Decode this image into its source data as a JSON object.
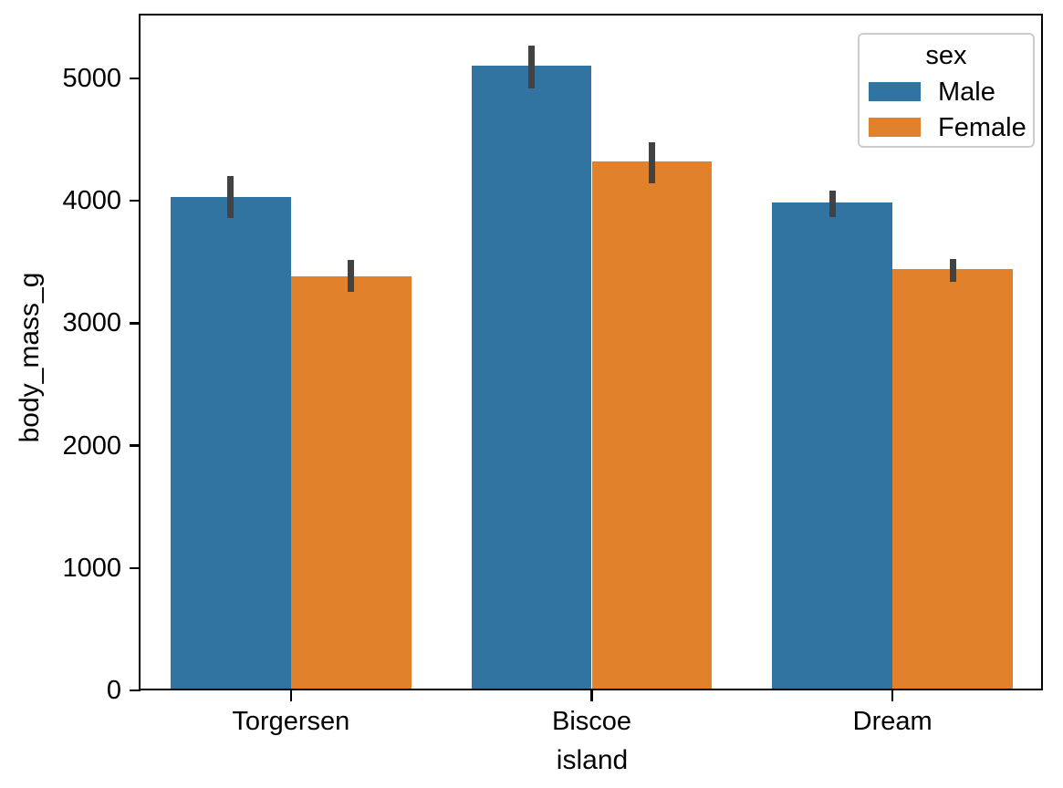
{
  "chart_data": {
    "type": "bar",
    "title": "",
    "xlabel": "island",
    "ylabel": "body_mass_g",
    "categories": [
      "Torgersen",
      "Biscoe",
      "Dream"
    ],
    "series": [
      {
        "name": "Male",
        "color": "#3274a1",
        "values": [
          4034.8,
          5104.5,
          3987.1
        ],
        "ci_low": [
          3860,
          4915,
          3865
        ],
        "ci_high": [
          4200,
          5265,
          4080
        ]
      },
      {
        "name": "Female",
        "color": "#e1812c",
        "values": [
          3386.6,
          4319.4,
          3446.3
        ],
        "ci_low": [
          3260,
          4140,
          3335
        ],
        "ci_high": [
          3515,
          4475,
          3525
        ]
      }
    ],
    "y_ticks": [
      "0",
      "1000",
      "2000",
      "3000",
      "4000",
      "5000"
    ],
    "ylim": [
      0,
      5520
    ],
    "grid": false,
    "error_bar_color": "#424242",
    "spine_color": "#000000",
    "legend": {
      "title": "sex",
      "position": "upper right",
      "entries": [
        "Male",
        "Female"
      ]
    }
  }
}
